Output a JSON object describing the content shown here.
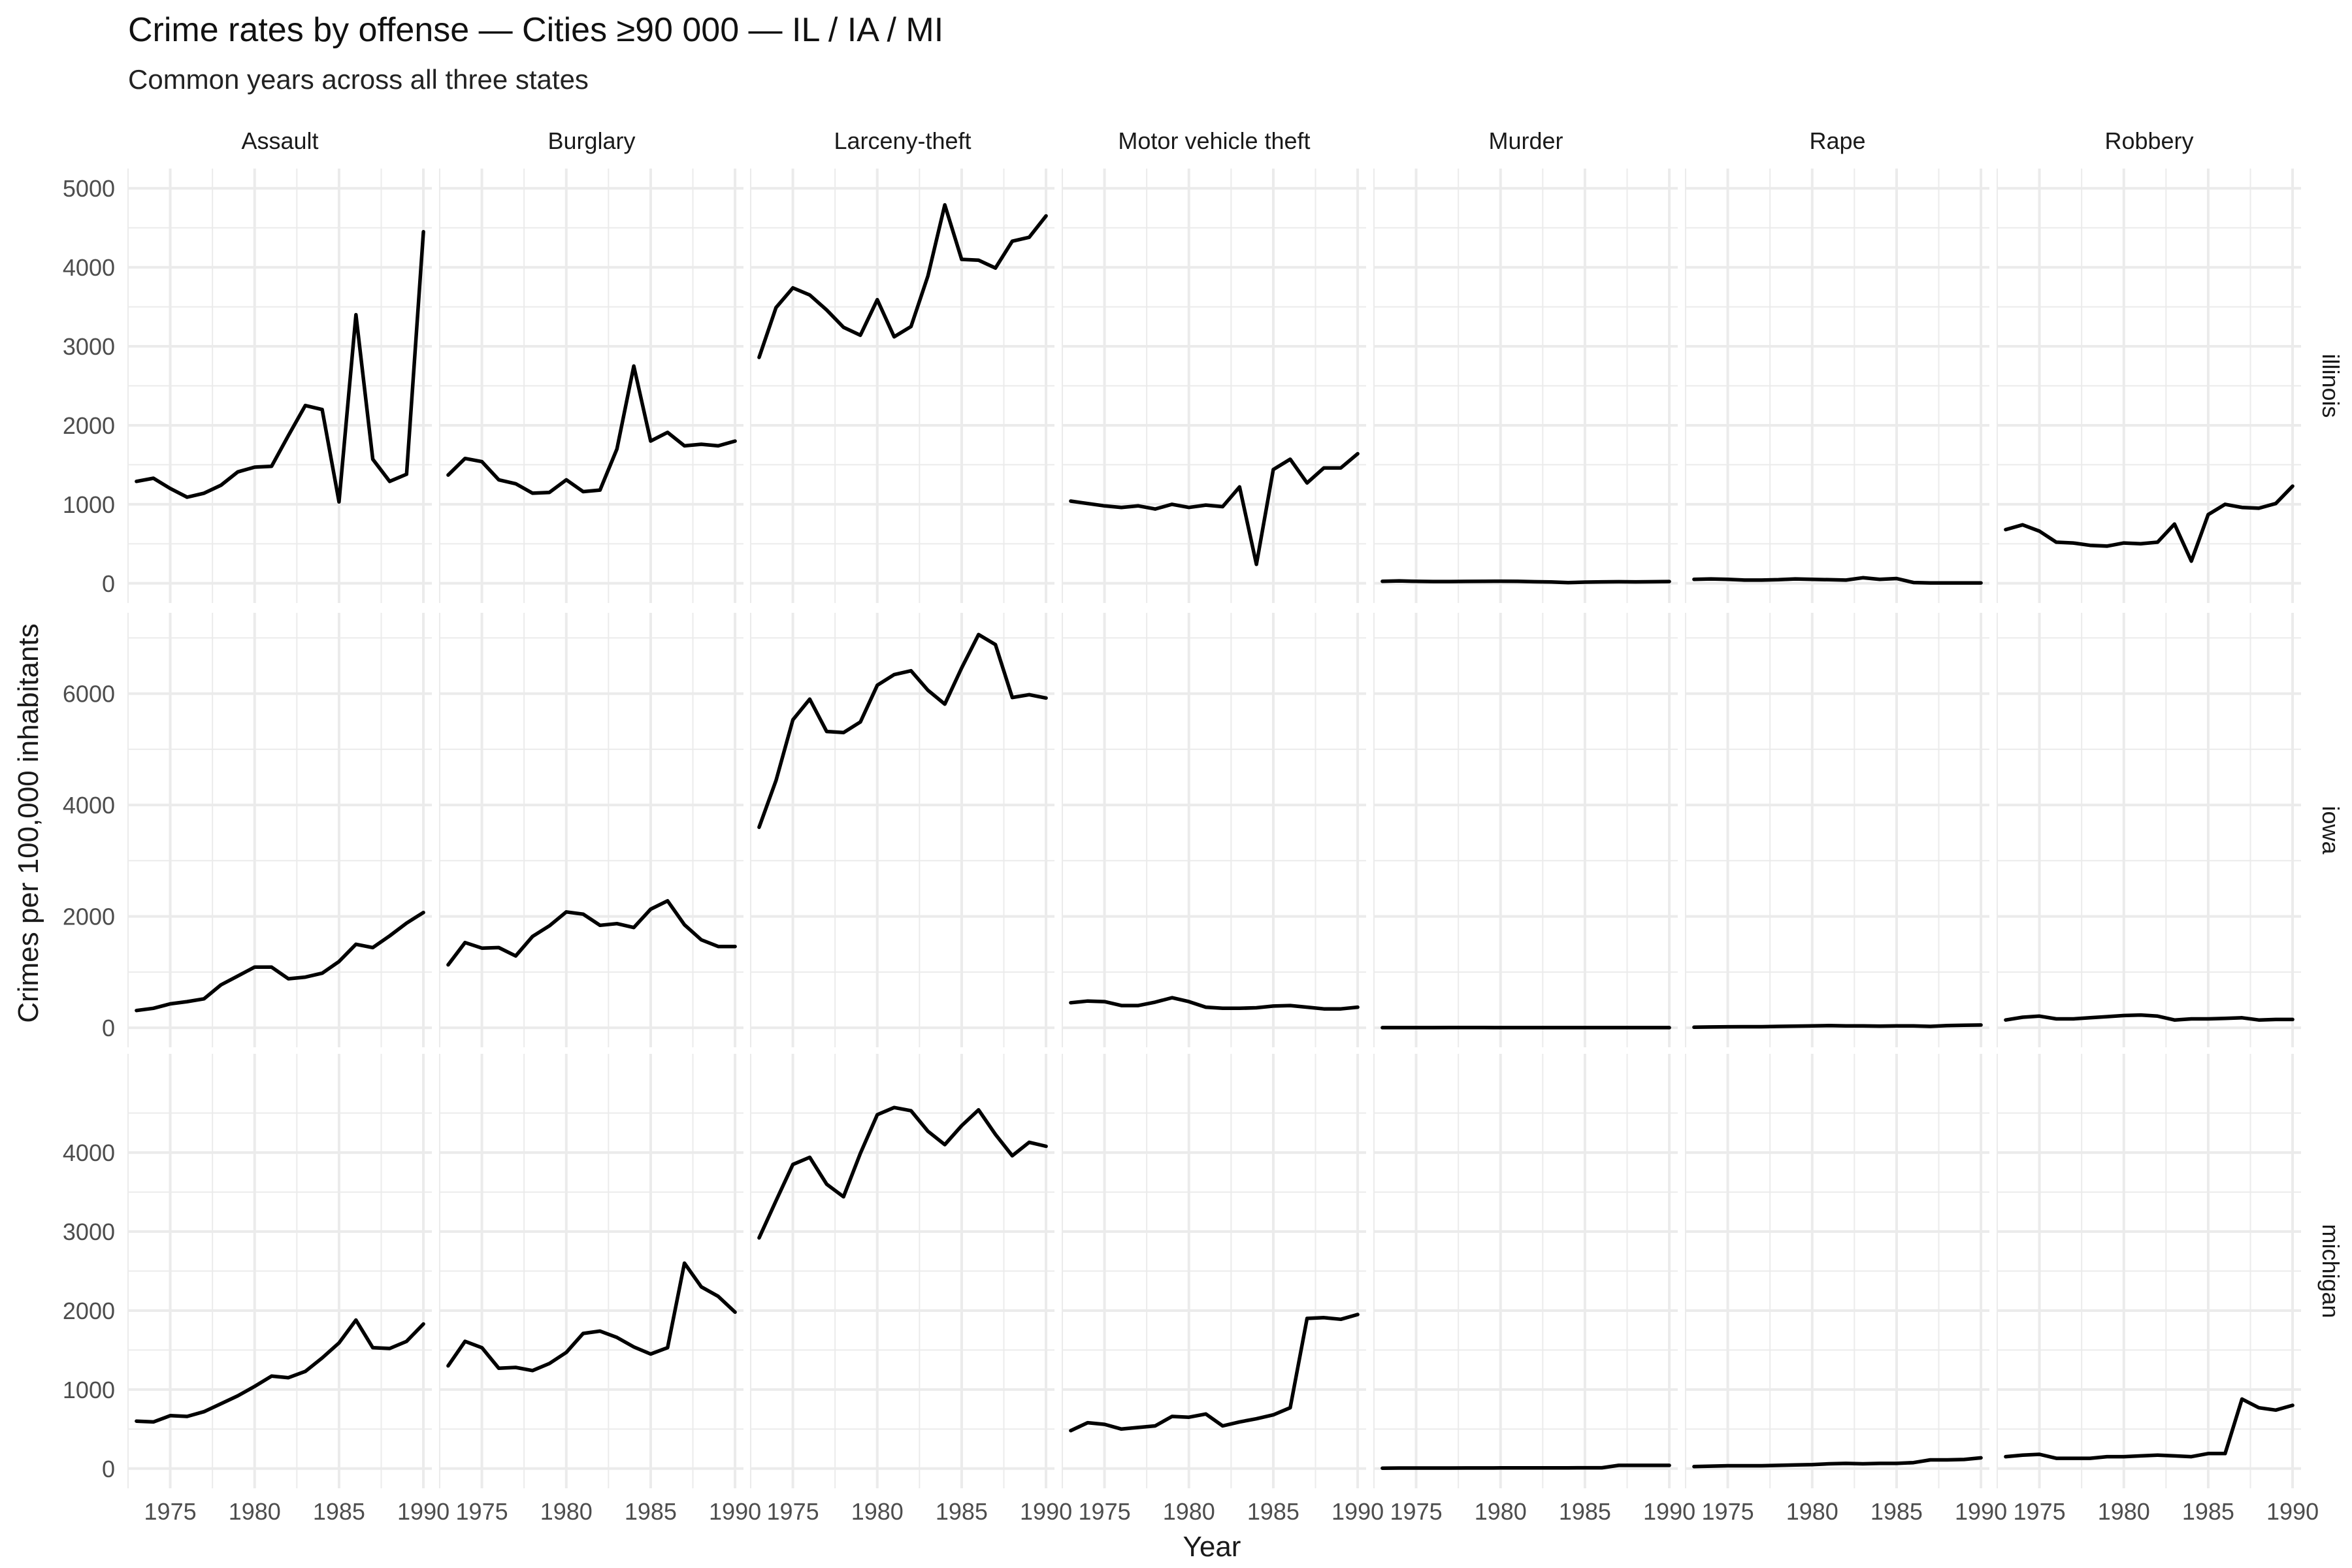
{
  "title": "Crime rates by offense — Cities ≥90 000 — IL / IA / MI",
  "subtitle": "Common years across all three states",
  "chart_data": {
    "type": "line",
    "facets": {
      "columns": [
        "Assault",
        "Burglary",
        "Larceny-theft",
        "Motor vehicle theft",
        "Murder",
        "Rape",
        "Robbery"
      ],
      "rows": [
        "illinois",
        "iowa",
        "michigan"
      ]
    },
    "xlabel": "Year",
    "ylabel": "Crimes per 100,000 inhabitants",
    "x": [
      1973,
      1974,
      1975,
      1976,
      1977,
      1978,
      1979,
      1980,
      1981,
      1982,
      1983,
      1984,
      1985,
      1986,
      1987,
      1988,
      1989,
      1990
    ],
    "xlim": [
      1972.5,
      1990.5
    ],
    "x_ticks": [
      1975,
      1980,
      1985,
      1990
    ],
    "grid": true,
    "line_color": "#000000",
    "grid_color": "#ebebeb",
    "rows": [
      {
        "name": "illinois",
        "ylim": [
          -250,
          5250
        ],
        "y_ticks": [
          0,
          1000,
          2000,
          3000,
          4000,
          5000
        ],
        "y_minor": [
          500,
          1500,
          2500,
          3500,
          4500
        ],
        "series": [
          {
            "facet": "Assault",
            "values": [
              1290,
              1330,
              1200,
              1090,
              1140,
              1240,
              1410,
              1470,
              1480,
              1870,
              2250,
              2200,
              1030,
              3400,
              1570,
              1290,
              1380,
              4450
            ]
          },
          {
            "facet": "Burglary",
            "values": [
              1370,
              1580,
              1540,
              1310,
              1260,
              1140,
              1150,
              1310,
              1160,
              1180,
              1700,
              2750,
              1800,
              1910,
              1740,
              1760,
              1740,
              1800
            ]
          },
          {
            "facet": "Larceny-theft",
            "values": [
              2860,
              3490,
              3740,
              3650,
              3460,
              3240,
              3140,
              3590,
              3120,
              3250,
              3890,
              4790,
              4100,
              4090,
              3990,
              4330,
              4380,
              4650
            ]
          },
          {
            "facet": "Motor vehicle theft",
            "values": [
              1040,
              1010,
              980,
              960,
              980,
              940,
              1000,
              960,
              990,
              970,
              1220,
              240,
              1440,
              1570,
              1270,
              1460,
              1460,
              1640
            ]
          },
          {
            "facet": "Murder",
            "values": [
              25,
              30,
              25,
              22,
              22,
              24,
              25,
              26,
              25,
              20,
              16,
              8,
              15,
              18,
              20,
              18,
              20,
              22
            ]
          },
          {
            "facet": "Rape",
            "values": [
              50,
              55,
              50,
              40,
              40,
              45,
              55,
              50,
              45,
              40,
              70,
              50,
              60,
              10,
              5,
              5,
              5,
              5
            ]
          },
          {
            "facet": "Robbery",
            "values": [
              680,
              740,
              660,
              520,
              510,
              480,
              470,
              510,
              500,
              520,
              750,
              280,
              870,
              1000,
              960,
              950,
              1010,
              1230
            ]
          }
        ]
      },
      {
        "name": "iowa",
        "ylim": [
          -350,
          7450
        ],
        "y_ticks": [
          0,
          2000,
          4000,
          6000
        ],
        "y_minor": [
          1000,
          3000,
          5000,
          7000
        ],
        "series": [
          {
            "facet": "Assault",
            "values": [
              310,
              350,
              430,
              470,
              520,
              770,
              930,
              1090,
              1090,
              880,
              910,
              980,
              1190,
              1500,
              1440,
              1650,
              1880,
              2070
            ]
          },
          {
            "facet": "Burglary",
            "values": [
              1130,
              1530,
              1430,
              1440,
              1290,
              1640,
              1830,
              2080,
              2040,
              1840,
              1870,
              1800,
              2130,
              2280,
              1850,
              1580,
              1460,
              1460
            ]
          },
          {
            "facet": "Larceny-theft",
            "values": [
              3600,
              4440,
              5530,
              5900,
              5320,
              5300,
              5490,
              6150,
              6340,
              6410,
              6060,
              5810,
              6460,
              7060,
              6880,
              5930,
              5980,
              5920
            ]
          },
          {
            "facet": "Motor vehicle theft",
            "values": [
              450,
              480,
              470,
              400,
              400,
              460,
              540,
              470,
              370,
              350,
              350,
              360,
              390,
              400,
              370,
              340,
              340,
              370
            ]
          },
          {
            "facet": "Murder",
            "values": [
              3,
              3,
              3,
              3,
              4,
              4,
              4,
              3,
              3,
              3,
              3,
              3,
              3,
              3,
              3,
              3,
              3,
              3
            ]
          },
          {
            "facet": "Rape",
            "values": [
              10,
              15,
              18,
              20,
              20,
              25,
              30,
              35,
              40,
              35,
              35,
              30,
              35,
              35,
              25,
              40,
              45,
              50
            ]
          },
          {
            "facet": "Robbery",
            "values": [
              140,
              190,
              210,
              160,
              160,
              180,
              200,
              220,
              230,
              210,
              140,
              160,
              160,
              170,
              180,
              140,
              150,
              150
            ]
          }
        ]
      },
      {
        "name": "michigan",
        "ylim": [
          -250,
          5250
        ],
        "y_ticks": [
          0,
          1000,
          2000,
          3000,
          4000
        ],
        "y_minor": [
          500,
          1500,
          2500,
          3500,
          4500
        ],
        "series": [
          {
            "facet": "Assault",
            "values": [
              600,
              590,
              670,
              660,
              720,
              820,
              920,
              1040,
              1170,
              1150,
              1230,
              1400,
              1590,
              1880,
              1530,
              1520,
              1610,
              1830
            ]
          },
          {
            "facet": "Burglary",
            "values": [
              1300,
              1610,
              1530,
              1270,
              1280,
              1240,
              1330,
              1470,
              1710,
              1740,
              1660,
              1540,
              1450,
              1530,
              2600,
              2300,
              2180,
              1980
            ]
          },
          {
            "facet": "Larceny-theft",
            "values": [
              2920,
              3390,
              3850,
              3940,
              3600,
              3440,
              3990,
              4480,
              4570,
              4530,
              4270,
              4100,
              4340,
              4540,
              4230,
              3960,
              4130,
              4080
            ]
          },
          {
            "facet": "Motor vehicle theft",
            "values": [
              480,
              580,
              560,
              500,
              520,
              540,
              660,
              650,
              690,
              540,
              590,
              630,
              680,
              770,
              1900,
              1910,
              1890,
              1950
            ]
          },
          {
            "facet": "Murder",
            "values": [
              5,
              6,
              6,
              6,
              6,
              7,
              7,
              8,
              8,
              8,
              9,
              9,
              10,
              10,
              40,
              40,
              40,
              40
            ]
          },
          {
            "facet": "Rape",
            "values": [
              25,
              30,
              35,
              35,
              35,
              40,
              45,
              50,
              60,
              65,
              60,
              65,
              65,
              75,
              110,
              110,
              115,
              135
            ]
          },
          {
            "facet": "Robbery",
            "values": [
              150,
              170,
              180,
              130,
              130,
              130,
              150,
              150,
              160,
              170,
              160,
              150,
              190,
              190,
              880,
              770,
              740,
              800
            ]
          }
        ]
      }
    ]
  }
}
